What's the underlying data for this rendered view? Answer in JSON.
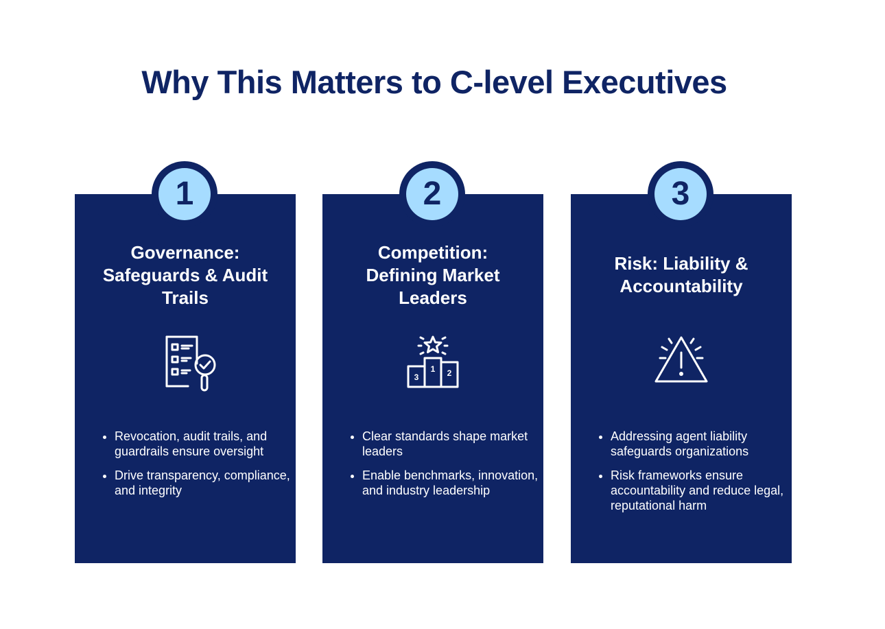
{
  "title": "Why This Matters to C-level Executives",
  "cards": [
    {
      "number": "1",
      "heading": "Governance: Safeguards & Audit Trails",
      "icon": "checklist-magnifier-icon",
      "bullets": [
        "Revocation, audit trails, and guardrails ensure oversight",
        "Drive transparency, compliance, and integrity"
      ]
    },
    {
      "number": "2",
      "heading": "Competition: Defining Market Leaders",
      "icon": "podium-star-icon",
      "podium_labels": [
        "3",
        "1",
        "2"
      ],
      "bullets": [
        "Clear standards shape market leaders",
        "Enable benchmarks, innovation, and industry leadership"
      ]
    },
    {
      "number": "3",
      "heading": "Risk: Liability & Accountability",
      "icon": "warning-triangle-icon",
      "bullets": [
        "Addressing agent liability safeguards organizations",
        "Risk frameworks ensure accountability and reduce legal, reputational harm"
      ]
    }
  ],
  "colors": {
    "navy": "#0f2464",
    "badge_fill": "#a6dcff",
    "text_on_card": "#ffffff"
  }
}
